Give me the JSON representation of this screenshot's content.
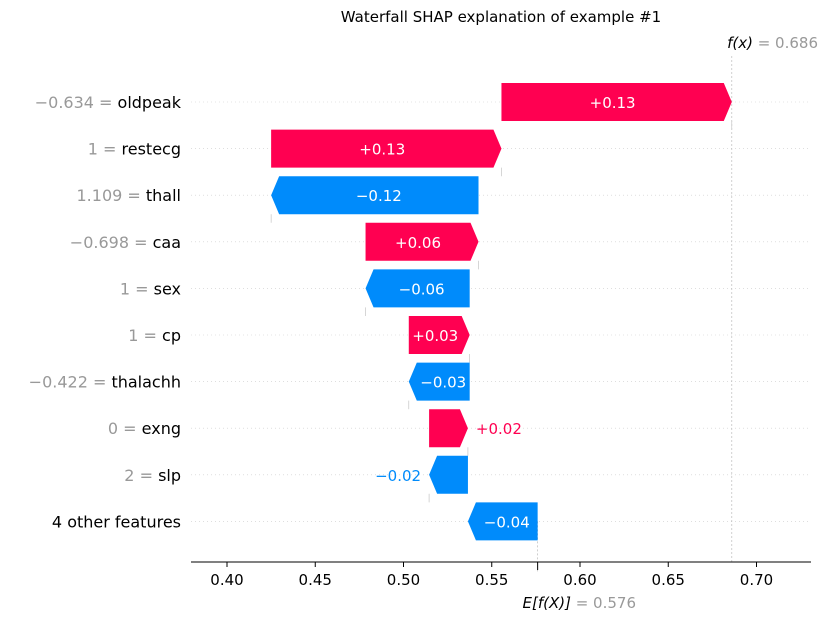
{
  "chart_data": {
    "type": "waterfall",
    "title": "Waterfall SHAP explanation of example #1",
    "fx": {
      "label": "f(x)",
      "value_text": "= 0.686",
      "value": 0.686
    },
    "base": {
      "label": "E[f(X)]",
      "value_text": "= 0.576",
      "value": 0.576
    },
    "xlim": [
      0.38,
      0.73
    ],
    "xticks": [
      0.4,
      0.45,
      0.5,
      0.55,
      0.6,
      0.65,
      0.7
    ],
    "xtick_labels": [
      "0.40",
      "0.45",
      "0.50",
      "0.55",
      "0.60",
      "0.65",
      "0.70"
    ],
    "features": [
      {
        "value_text": "−0.634 =",
        "name": "oldpeak",
        "shap": 0.13,
        "label": "+0.13",
        "start": 0.5555,
        "end": 0.686
      },
      {
        "value_text": "1 =",
        "name": "restecg",
        "shap": 0.13,
        "label": "+0.13",
        "start": 0.425,
        "end": 0.5555
      },
      {
        "value_text": "1.109 =",
        "name": "thall",
        "shap": -0.12,
        "label": "−0.12",
        "start": 0.5425,
        "end": 0.425
      },
      {
        "value_text": "−0.698 =",
        "name": "caa",
        "shap": 0.06,
        "label": "+0.06",
        "start": 0.4785,
        "end": 0.5425
      },
      {
        "value_text": "1 =",
        "name": "sex",
        "shap": -0.06,
        "label": "−0.06",
        "start": 0.5375,
        "end": 0.4785
      },
      {
        "value_text": "1 =",
        "name": "cp",
        "shap": 0.03,
        "label": "+0.03",
        "start": 0.503,
        "end": 0.5375
      },
      {
        "value_text": "−0.422 =",
        "name": "thalachh",
        "shap": -0.03,
        "label": "−0.03",
        "start": 0.5375,
        "end": 0.503
      },
      {
        "value_text": "0 =",
        "name": "exng",
        "shap": 0.02,
        "label": "+0.02",
        "start": 0.5145,
        "end": 0.5365
      },
      {
        "value_text": "2 =",
        "name": "slp",
        "shap": -0.02,
        "label": "−0.02",
        "start": 0.5365,
        "end": 0.5145
      },
      {
        "value_text": "",
        "name": "4 other features",
        "shap": -0.04,
        "label": "−0.04",
        "start": 0.576,
        "end": 0.5365
      }
    ],
    "colors": {
      "positive": "#ff0051",
      "negative": "#008bfb",
      "value_grey": "#999999"
    }
  }
}
